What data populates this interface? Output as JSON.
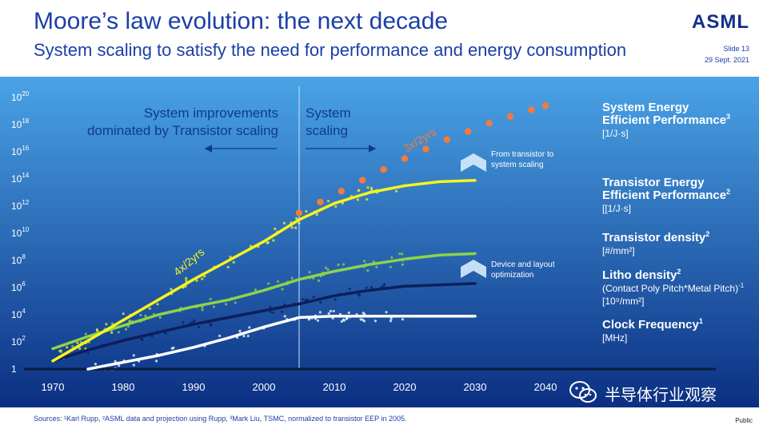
{
  "slide": {
    "title": "Moore’s law evolution: the next decade",
    "subtitle": "System scaling to satisfy the need for performance and energy consumption",
    "logo": "ASML",
    "slide_number": "Slide 13",
    "date": "29 Sept. 2021",
    "sources": "Sources: ¹Karl Rupp, ²ASML data and projection using Rupp, ³Mark Liu, TSMC, normalized to transistor EEP in 2005.",
    "classification": "Public",
    "watermark": "半导体行业观察",
    "watermark_icon": "wechat-icon"
  },
  "colors": {
    "background_top": "#4aa3e6",
    "background_bottom": "#0b2f82",
    "system_eep": "#f47b3a",
    "transistor_eep": "#f5f520",
    "transistor_density": "#8ed34a",
    "litho_density": "#0c1f5c",
    "clock_frequency": "#ffffff",
    "region_text": "#0d3b8c"
  },
  "chart_data": {
    "type": "scatter",
    "x_label": "",
    "y_label": "",
    "x_range": [
      1968,
      2044
    ],
    "y_scale": "log",
    "y_range_exponent": [
      0,
      20
    ],
    "x_ticks": [
      "1970",
      "1980",
      "1990",
      "2000",
      "2010",
      "2020",
      "2030",
      "2040"
    ],
    "y_ticks": [
      {
        "base": "1",
        "exp": ""
      },
      {
        "base": "10",
        "exp": "2"
      },
      {
        "base": "10",
        "exp": "4"
      },
      {
        "base": "10",
        "exp": "6"
      },
      {
        "base": "10",
        "exp": "8"
      },
      {
        "base": "10",
        "exp": "10"
      },
      {
        "base": "10",
        "exp": "12"
      },
      {
        "base": "10",
        "exp": "14"
      },
      {
        "base": "10",
        "exp": "16"
      },
      {
        "base": "10",
        "exp": "18"
      },
      {
        "base": "10",
        "exp": "20"
      }
    ],
    "divider_year": 2005,
    "regions": [
      {
        "line1": "System improvements",
        "line2": "dominated by Transistor scaling",
        "arrow": "left"
      },
      {
        "line1": "System",
        "line2": "scaling",
        "arrow": "right"
      }
    ],
    "series": [
      {
        "key": "system_eep",
        "name_line1": "System Energy",
        "name_line2": "Efficient Performance",
        "superscript": "3",
        "unit": "[1/J·s]",
        "style": "dots",
        "points": [
          [
            2005,
            11.5
          ],
          [
            2008,
            12.3
          ],
          [
            2011,
            13.1
          ],
          [
            2014,
            13.9
          ],
          [
            2017,
            14.7
          ],
          [
            2020,
            15.5
          ],
          [
            2023,
            16.2
          ],
          [
            2026,
            16.9
          ],
          [
            2029,
            17.5
          ],
          [
            2032,
            18.1
          ],
          [
            2035,
            18.6
          ],
          [
            2038,
            19.1
          ],
          [
            2040,
            19.4
          ]
        ],
        "rate_label": "3x/2yrs"
      },
      {
        "key": "transistor_eep",
        "name_line1": "Transistor Energy",
        "name_line2": "Efficient Performance",
        "superscript": "2",
        "unit": "[[1/J·s]",
        "style": "line",
        "points": [
          [
            1970,
            0.6
          ],
          [
            1975,
            2.1
          ],
          [
            1980,
            3.6
          ],
          [
            1985,
            5.1
          ],
          [
            1990,
            6.6
          ],
          [
            1995,
            8.0
          ],
          [
            2000,
            9.4
          ],
          [
            2005,
            11.0
          ],
          [
            2010,
            12.2
          ],
          [
            2015,
            13.0
          ],
          [
            2020,
            13.5
          ],
          [
            2025,
            13.8
          ],
          [
            2030,
            13.9
          ]
        ],
        "rate_label": "4x/2yrs"
      },
      {
        "key": "transistor_density",
        "name_line1": "Transistor density",
        "name_line2": "",
        "superscript": "2",
        "unit": "[#/mm²]",
        "style": "line",
        "points": [
          [
            1970,
            1.5
          ],
          [
            1975,
            2.4
          ],
          [
            1980,
            3.2
          ],
          [
            1985,
            4.0
          ],
          [
            1990,
            4.6
          ],
          [
            1995,
            5.1
          ],
          [
            2000,
            5.8
          ],
          [
            2005,
            6.6
          ],
          [
            2010,
            7.2
          ],
          [
            2015,
            7.7
          ],
          [
            2020,
            8.1
          ],
          [
            2025,
            8.4
          ],
          [
            2030,
            8.5
          ]
        ]
      },
      {
        "key": "litho_density",
        "name_line1": "Litho density",
        "name_line2": "",
        "superscript": "2",
        "unit_prefix": "(Contact Poly Pitch*Metal Pitch)",
        "unit_prefix_exp": "-1",
        "unit": "[10⁹/mm²]",
        "style": "line",
        "points": [
          [
            1970,
            0.6
          ],
          [
            1975,
            1.4
          ],
          [
            1980,
            2.1
          ],
          [
            1985,
            2.7
          ],
          [
            1990,
            3.3
          ],
          [
            1995,
            3.8
          ],
          [
            2000,
            4.3
          ],
          [
            2005,
            4.8
          ],
          [
            2010,
            5.4
          ],
          [
            2015,
            5.8
          ],
          [
            2020,
            6.1
          ],
          [
            2025,
            6.2
          ],
          [
            2030,
            6.3
          ]
        ]
      },
      {
        "key": "clock_frequency",
        "name_line1": "Clock Frequency",
        "name_line2": "",
        "superscript": "1",
        "unit": "[MHz]",
        "style": "line",
        "points": [
          [
            1975,
            0.0
          ],
          [
            1980,
            0.5
          ],
          [
            1985,
            1.0
          ],
          [
            1990,
            1.6
          ],
          [
            1995,
            2.3
          ],
          [
            2000,
            3.1
          ],
          [
            2005,
            3.8
          ],
          [
            2010,
            3.9
          ],
          [
            2015,
            3.9
          ],
          [
            2020,
            3.9
          ],
          [
            2030,
            3.9
          ]
        ]
      }
    ],
    "annotations": [
      {
        "text_line1": "From transistor to",
        "text_line2": "system scaling"
      },
      {
        "text_line1": "Device and layout",
        "text_line2": "optimization"
      }
    ]
  }
}
